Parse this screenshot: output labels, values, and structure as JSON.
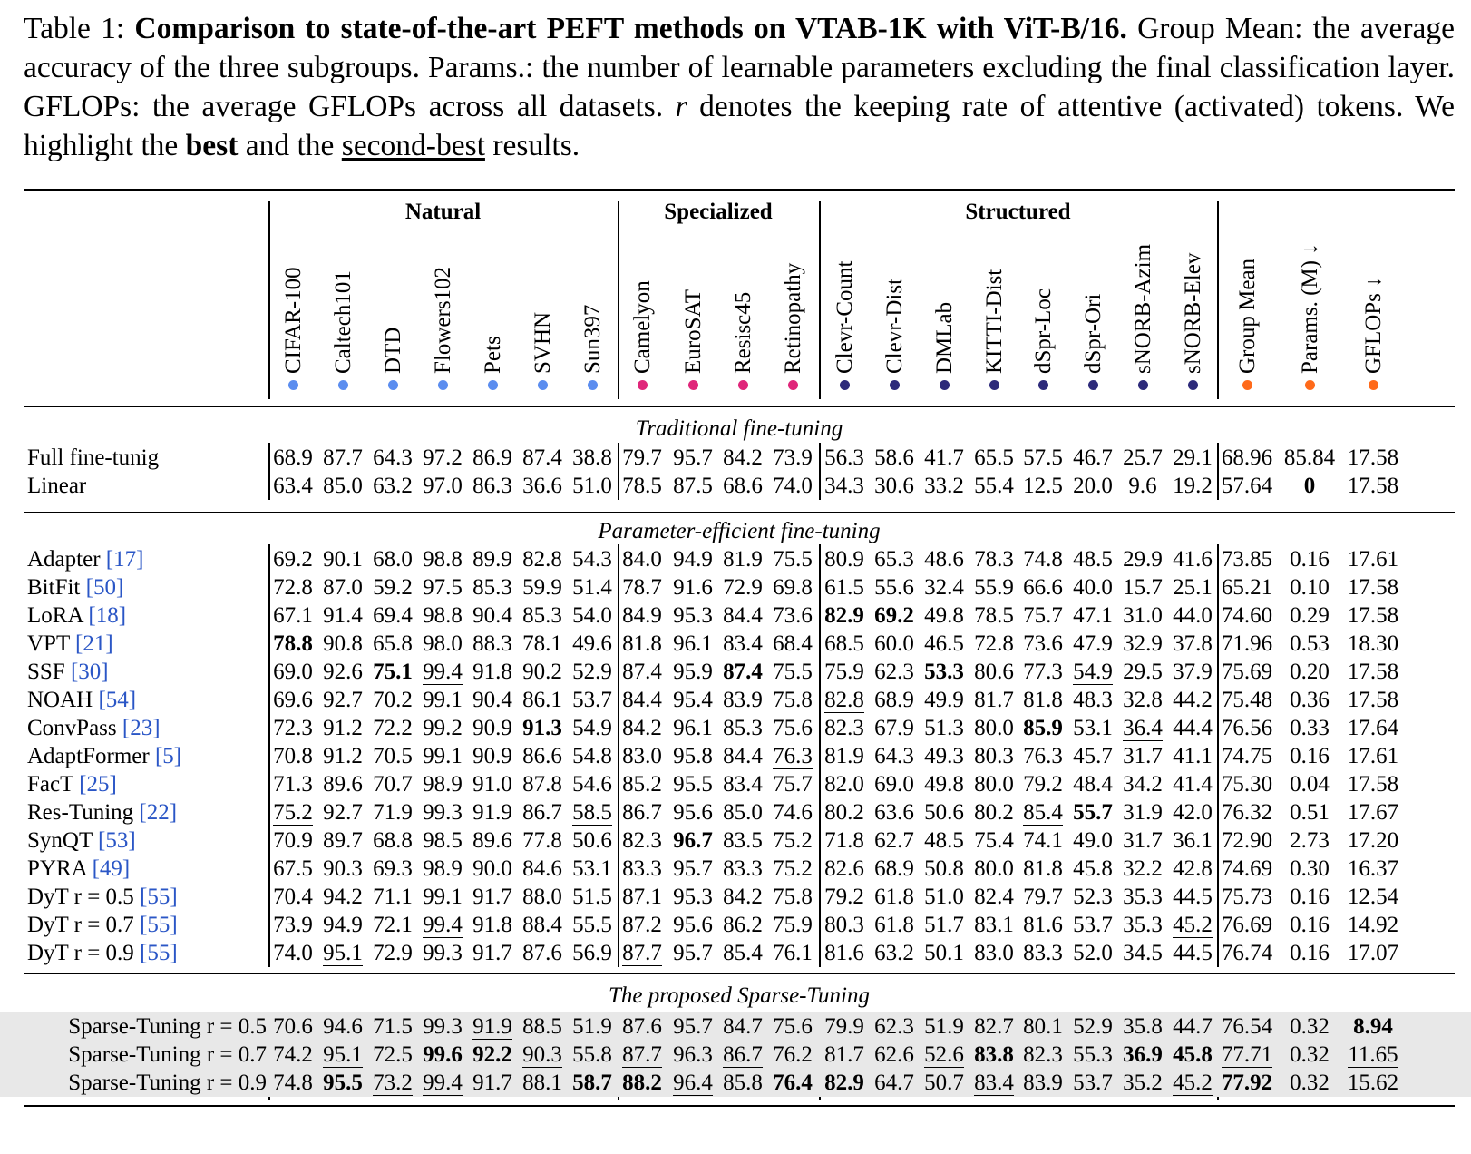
{
  "caption": {
    "label": "Table 1: ",
    "bold_title": "Comparison to state-of-the-art PEFT methods on VTAB-1K with ViT-B/16.",
    "text1": " Group Mean: the average accuracy of the three subgroups. Params.: the number of learnable parameters excluding the final classification layer. GFLOPs: the average GFLOPs across all datasets. ",
    "r_symbol": "r",
    "text2": " denotes the keeping rate of attentive (activated) tokens. We highlight the ",
    "best": "best",
    "text3": " and the ",
    "second_best": "second-best",
    "text4": " results."
  },
  "groups": [
    "Natural",
    "Specialized",
    "Structured"
  ],
  "columns": [
    "CIFAR-100",
    "Caltech101",
    "DTD",
    "Flowers102",
    "Pets",
    "SVHN",
    "Sun397",
    "Camelyon",
    "EuroSAT",
    "Resisc45",
    "Retinopathy",
    "Clevr-Count",
    "Clevr-Dist",
    "DMLab",
    "KITTI-Dist",
    "dSpr-Loc",
    "dSpr-Ori",
    "sNORB-Azim",
    "sNORB-Elev",
    "Group Mean",
    "Params. (M) ↓",
    "GFLOPs ↓"
  ],
  "dot_colors": {
    "natural": "#5b8def",
    "specialized": "#e0267a",
    "structured": "#2d2a7a",
    "summary": "#ff6a1a"
  },
  "sections": [
    "Traditional fine-tuning",
    "Parameter-efficient fine-tuning",
    "The proposed Sparse-Tuning"
  ],
  "rows": [
    {
      "section": 0,
      "name": "Full fine-tunig",
      "ref": "",
      "vals": [
        "68.9",
        "87.7",
        "64.3",
        "97.2",
        "86.9",
        "87.4",
        "38.8",
        "79.7",
        "95.7",
        "84.2",
        "73.9",
        "56.3",
        "58.6",
        "41.7",
        "65.5",
        "57.5",
        "46.7",
        "25.7",
        "29.1",
        "68.96",
        "85.84",
        "17.58"
      ],
      "bold": [],
      "under": []
    },
    {
      "section": 0,
      "name": "Linear",
      "ref": "",
      "vals": [
        "63.4",
        "85.0",
        "63.2",
        "97.0",
        "86.3",
        "36.6",
        "51.0",
        "78.5",
        "87.5",
        "68.6",
        "74.0",
        "34.3",
        "30.6",
        "33.2",
        "55.4",
        "12.5",
        "20.0",
        "9.6",
        "19.2",
        "57.64",
        "0",
        "17.58"
      ],
      "bold": [
        20
      ],
      "under": []
    },
    {
      "section": 1,
      "name": "Adapter ",
      "ref": "[17]",
      "vals": [
        "69.2",
        "90.1",
        "68.0",
        "98.8",
        "89.9",
        "82.8",
        "54.3",
        "84.0",
        "94.9",
        "81.9",
        "75.5",
        "80.9",
        "65.3",
        "48.6",
        "78.3",
        "74.8",
        "48.5",
        "29.9",
        "41.6",
        "73.85",
        "0.16",
        "17.61"
      ],
      "bold": [],
      "under": []
    },
    {
      "section": 1,
      "name": "BitFit ",
      "ref": "[50]",
      "vals": [
        "72.8",
        "87.0",
        "59.2",
        "97.5",
        "85.3",
        "59.9",
        "51.4",
        "78.7",
        "91.6",
        "72.9",
        "69.8",
        "61.5",
        "55.6",
        "32.4",
        "55.9",
        "66.6",
        "40.0",
        "15.7",
        "25.1",
        "65.21",
        "0.10",
        "17.58"
      ],
      "bold": [],
      "under": []
    },
    {
      "section": 1,
      "name": "LoRA ",
      "ref": "[18]",
      "vals": [
        "67.1",
        "91.4",
        "69.4",
        "98.8",
        "90.4",
        "85.3",
        "54.0",
        "84.9",
        "95.3",
        "84.4",
        "73.6",
        "82.9",
        "69.2",
        "49.8",
        "78.5",
        "75.7",
        "47.1",
        "31.0",
        "44.0",
        "74.60",
        "0.29",
        "17.58"
      ],
      "bold": [
        11,
        12
      ],
      "under": []
    },
    {
      "section": 1,
      "name": "VPT ",
      "ref": "[21]",
      "vals": [
        "78.8",
        "90.8",
        "65.8",
        "98.0",
        "88.3",
        "78.1",
        "49.6",
        "81.8",
        "96.1",
        "83.4",
        "68.4",
        "68.5",
        "60.0",
        "46.5",
        "72.8",
        "73.6",
        "47.9",
        "32.9",
        "37.8",
        "71.96",
        "0.53",
        "18.30"
      ],
      "bold": [
        0
      ],
      "under": []
    },
    {
      "section": 1,
      "name": "SSF ",
      "ref": "[30]",
      "vals": [
        "69.0",
        "92.6",
        "75.1",
        "99.4",
        "91.8",
        "90.2",
        "52.9",
        "87.4",
        "95.9",
        "87.4",
        "75.5",
        "75.9",
        "62.3",
        "53.3",
        "80.6",
        "77.3",
        "54.9",
        "29.5",
        "37.9",
        "75.69",
        "0.20",
        "17.58"
      ],
      "bold": [
        2,
        9,
        13
      ],
      "under": [
        3,
        16
      ]
    },
    {
      "section": 1,
      "name": "NOAH ",
      "ref": "[54]",
      "vals": [
        "69.6",
        "92.7",
        "70.2",
        "99.1",
        "90.4",
        "86.1",
        "53.7",
        "84.4",
        "95.4",
        "83.9",
        "75.8",
        "82.8",
        "68.9",
        "49.9",
        "81.7",
        "81.8",
        "48.3",
        "32.8",
        "44.2",
        "75.48",
        "0.36",
        "17.58"
      ],
      "bold": [],
      "under": [
        11
      ]
    },
    {
      "section": 1,
      "name": "ConvPass ",
      "ref": "[23]",
      "vals": [
        "72.3",
        "91.2",
        "72.2",
        "99.2",
        "90.9",
        "91.3",
        "54.9",
        "84.2",
        "96.1",
        "85.3",
        "75.6",
        "82.3",
        "67.9",
        "51.3",
        "80.0",
        "85.9",
        "53.1",
        "36.4",
        "44.4",
        "76.56",
        "0.33",
        "17.64"
      ],
      "bold": [
        5,
        15
      ],
      "under": [
        17
      ]
    },
    {
      "section": 1,
      "name": "AdaptFormer ",
      "ref": "[5]",
      "vals": [
        "70.8",
        "91.2",
        "70.5",
        "99.1",
        "90.9",
        "86.6",
        "54.8",
        "83.0",
        "95.8",
        "84.4",
        "76.3",
        "81.9",
        "64.3",
        "49.3",
        "80.3",
        "76.3",
        "45.7",
        "31.7",
        "41.1",
        "74.75",
        "0.16",
        "17.61"
      ],
      "bold": [],
      "under": [
        10
      ]
    },
    {
      "section": 1,
      "name": "FacT ",
      "ref": "[25]",
      "vals": [
        "71.3",
        "89.6",
        "70.7",
        "98.9",
        "91.0",
        "87.8",
        "54.6",
        "85.2",
        "95.5",
        "83.4",
        "75.7",
        "82.0",
        "69.0",
        "49.8",
        "80.0",
        "79.2",
        "48.4",
        "34.2",
        "41.4",
        "75.30",
        "0.04",
        "17.58"
      ],
      "bold": [],
      "under": [
        12,
        20
      ]
    },
    {
      "section": 1,
      "name": "Res-Tuning ",
      "ref": "[22]",
      "vals": [
        "75.2",
        "92.7",
        "71.9",
        "99.3",
        "91.9",
        "86.7",
        "58.5",
        "86.7",
        "95.6",
        "85.0",
        "74.6",
        "80.2",
        "63.6",
        "50.6",
        "80.2",
        "85.4",
        "55.7",
        "31.9",
        "42.0",
        "76.32",
        "0.51",
        "17.67"
      ],
      "bold": [
        16
      ],
      "under": [
        0,
        6,
        15
      ]
    },
    {
      "section": 1,
      "name": "SynQT ",
      "ref": "[53]",
      "vals": [
        "70.9",
        "89.7",
        "68.8",
        "98.5",
        "89.6",
        "77.8",
        "50.6",
        "82.3",
        "96.7",
        "83.5",
        "75.2",
        "71.8",
        "62.7",
        "48.5",
        "75.4",
        "74.1",
        "49.0",
        "31.7",
        "36.1",
        "72.90",
        "2.73",
        "17.20"
      ],
      "bold": [
        8
      ],
      "under": []
    },
    {
      "section": 1,
      "name": "PYRA ",
      "ref": "[49]",
      "vals": [
        "67.5",
        "90.3",
        "69.3",
        "98.9",
        "90.0",
        "84.6",
        "53.1",
        "83.3",
        "95.7",
        "83.3",
        "75.2",
        "82.6",
        "68.9",
        "50.8",
        "80.0",
        "81.8",
        "45.8",
        "32.2",
        "42.8",
        "74.69",
        "0.30",
        "16.37"
      ],
      "bold": [],
      "under": []
    },
    {
      "section": 1,
      "name": "DyT r = 0.5 ",
      "ref": "[55]",
      "vals": [
        "70.4",
        "94.2",
        "71.1",
        "99.1",
        "91.7",
        "88.0",
        "51.5",
        "87.1",
        "95.3",
        "84.2",
        "75.8",
        "79.2",
        "61.8",
        "51.0",
        "82.4",
        "79.7",
        "52.3",
        "35.3",
        "44.5",
        "75.73",
        "0.16",
        "12.54"
      ],
      "bold": [],
      "under": []
    },
    {
      "section": 1,
      "name": "DyT r = 0.7 ",
      "ref": "[55]",
      "vals": [
        "73.9",
        "94.9",
        "72.1",
        "99.4",
        "91.8",
        "88.4",
        "55.5",
        "87.2",
        "95.6",
        "86.2",
        "75.9",
        "80.3",
        "61.8",
        "51.7",
        "83.1",
        "81.6",
        "53.7",
        "35.3",
        "45.2",
        "76.69",
        "0.16",
        "14.92"
      ],
      "bold": [],
      "under": [
        3,
        18
      ]
    },
    {
      "section": 1,
      "name": "DyT r = 0.9 ",
      "ref": "[55]",
      "vals": [
        "74.0",
        "95.1",
        "72.9",
        "99.3",
        "91.7",
        "87.6",
        "56.9",
        "87.7",
        "95.7",
        "85.4",
        "76.1",
        "81.6",
        "63.2",
        "50.1",
        "83.0",
        "83.3",
        "52.0",
        "34.5",
        "44.5",
        "76.74",
        "0.16",
        "17.07"
      ],
      "bold": [],
      "under": [
        1,
        7
      ]
    },
    {
      "section": 2,
      "name": "Sparse-Tuning r = 0.5",
      "ref": "",
      "vals": [
        "70.6",
        "94.6",
        "71.5",
        "99.3",
        "91.9",
        "88.5",
        "51.9",
        "87.6",
        "95.7",
        "84.7",
        "75.6",
        "79.9",
        "62.3",
        "51.9",
        "82.7",
        "80.1",
        "52.9",
        "35.8",
        "44.7",
        "76.54",
        "0.32",
        "8.94"
      ],
      "bold": [
        21
      ],
      "under": [
        4
      ]
    },
    {
      "section": 2,
      "name": "Sparse-Tuning r = 0.7",
      "ref": "",
      "vals": [
        "74.2",
        "95.1",
        "72.5",
        "99.6",
        "92.2",
        "90.3",
        "55.8",
        "87.7",
        "96.3",
        "86.7",
        "76.2",
        "81.7",
        "62.6",
        "52.6",
        "83.8",
        "82.3",
        "55.3",
        "36.9",
        "45.8",
        "77.71",
        "0.32",
        "11.65"
      ],
      "bold": [
        3,
        4,
        14,
        17,
        18
      ],
      "under": [
        1,
        5,
        7,
        9,
        13,
        19,
        21
      ]
    },
    {
      "section": 2,
      "name": "Sparse-Tuning r = 0.9",
      "ref": "",
      "vals": [
        "74.8",
        "95.5",
        "73.2",
        "99.4",
        "91.7",
        "88.1",
        "58.7",
        "88.2",
        "96.4",
        "85.8",
        "76.4",
        "82.9",
        "64.7",
        "50.7",
        "83.4",
        "83.9",
        "53.7",
        "35.2",
        "45.2",
        "77.92",
        "0.32",
        "15.62"
      ],
      "bold": [
        1,
        6,
        7,
        10,
        11,
        19
      ],
      "under": [
        2,
        3,
        8,
        14,
        18
      ]
    }
  ]
}
